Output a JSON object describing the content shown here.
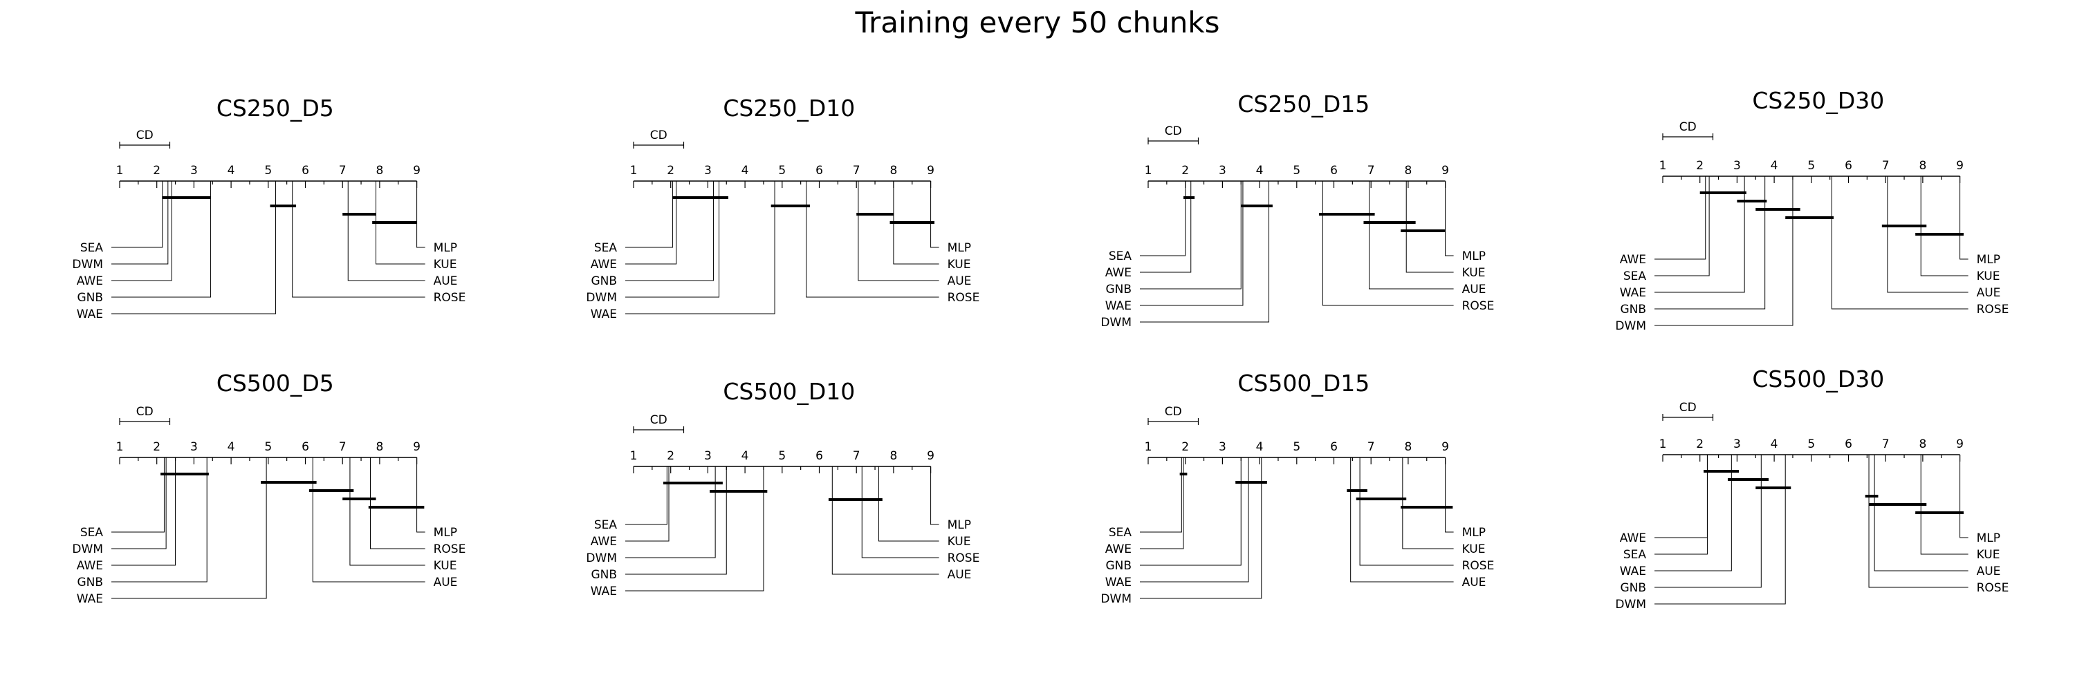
{
  "page_title": "Training every 50 chunks",
  "chart_data": [
    {
      "type": "critical-difference-diagram",
      "title": "CS250_D5",
      "axis_ticks": [
        1,
        2,
        3,
        4,
        5,
        6,
        7,
        8,
        9
      ],
      "axis_range": [
        1,
        9
      ],
      "cd_label": "CD",
      "cd_value": 1.35,
      "methods": [
        {
          "name": "SEA",
          "rank": 2.15
        },
        {
          "name": "DWM",
          "rank": 2.3
        },
        {
          "name": "AWE",
          "rank": 2.4
        },
        {
          "name": "GNB",
          "rank": 3.45
        },
        {
          "name": "WAE",
          "rank": 5.2
        },
        {
          "name": "ROSE",
          "rank": 5.65
        },
        {
          "name": "AUE",
          "rank": 7.15
        },
        {
          "name": "KUE",
          "rank": 7.9
        },
        {
          "name": "MLP",
          "rank": 9.0
        }
      ],
      "cliques": [
        [
          2.15,
          3.45
        ],
        [
          5.05,
          5.75
        ],
        [
          7.0,
          7.9
        ],
        [
          7.8,
          9.0
        ]
      ]
    },
    {
      "type": "critical-difference-diagram",
      "title": "CS250_D10",
      "axis_ticks": [
        1,
        2,
        3,
        4,
        5,
        6,
        7,
        8,
        9
      ],
      "axis_range": [
        1,
        9
      ],
      "cd_label": "CD",
      "cd_value": 1.35,
      "methods": [
        {
          "name": "SEA",
          "rank": 2.05
        },
        {
          "name": "AWE",
          "rank": 2.15
        },
        {
          "name": "GNB",
          "rank": 3.15
        },
        {
          "name": "DWM",
          "rank": 3.3
        },
        {
          "name": "WAE",
          "rank": 4.8
        },
        {
          "name": "ROSE",
          "rank": 5.65
        },
        {
          "name": "AUE",
          "rank": 7.05
        },
        {
          "name": "KUE",
          "rank": 8.0
        },
        {
          "name": "MLP",
          "rank": 9.0
        }
      ],
      "cliques": [
        [
          2.05,
          3.55
        ],
        [
          4.7,
          5.75
        ],
        [
          7.0,
          8.0
        ],
        [
          7.9,
          9.1
        ]
      ]
    },
    {
      "type": "critical-difference-diagram",
      "title": "CS250_D15",
      "axis_ticks": [
        1,
        2,
        3,
        4,
        5,
        6,
        7,
        8,
        9
      ],
      "axis_range": [
        1,
        9
      ],
      "cd_label": "CD",
      "cd_value": 1.35,
      "methods": [
        {
          "name": "SEA",
          "rank": 2.0
        },
        {
          "name": "AWE",
          "rank": 2.15
        },
        {
          "name": "GNB",
          "rank": 3.5
        },
        {
          "name": "WAE",
          "rank": 3.55
        },
        {
          "name": "DWM",
          "rank": 4.25
        },
        {
          "name": "ROSE",
          "rank": 5.7
        },
        {
          "name": "AUE",
          "rank": 6.95
        },
        {
          "name": "KUE",
          "rank": 7.95
        },
        {
          "name": "MLP",
          "rank": 9.0
        }
      ],
      "cliques": [
        [
          1.95,
          2.25
        ],
        [
          3.5,
          4.35
        ],
        [
          5.6,
          7.1
        ],
        [
          6.8,
          8.2
        ],
        [
          7.8,
          9.0
        ]
      ]
    },
    {
      "type": "critical-difference-diagram",
      "title": "CS250_D30",
      "axis_ticks": [
        1,
        2,
        3,
        4,
        5,
        6,
        7,
        8,
        9
      ],
      "axis_range": [
        1,
        9
      ],
      "cd_label": "CD",
      "cd_value": 1.35,
      "methods": [
        {
          "name": "AWE",
          "rank": 2.15
        },
        {
          "name": "SEA",
          "rank": 2.25
        },
        {
          "name": "WAE",
          "rank": 3.2
        },
        {
          "name": "GNB",
          "rank": 3.75
        },
        {
          "name": "DWM",
          "rank": 4.5
        },
        {
          "name": "ROSE",
          "rank": 5.55
        },
        {
          "name": "AUE",
          "rank": 7.05
        },
        {
          "name": "KUE",
          "rank": 7.95
        },
        {
          "name": "MLP",
          "rank": 9.0
        }
      ],
      "cliques": [
        [
          2.0,
          3.25
        ],
        [
          3.0,
          3.8
        ],
        [
          3.5,
          4.7
        ],
        [
          4.3,
          5.6
        ],
        [
          6.9,
          8.1
        ],
        [
          7.8,
          9.1
        ]
      ]
    },
    {
      "type": "critical-difference-diagram",
      "title": "CS500_D5",
      "axis_ticks": [
        1,
        2,
        3,
        4,
        5,
        6,
        7,
        8,
        9
      ],
      "axis_range": [
        1,
        9
      ],
      "cd_label": "CD",
      "cd_value": 1.35,
      "methods": [
        {
          "name": "SEA",
          "rank": 2.2
        },
        {
          "name": "DWM",
          "rank": 2.25
        },
        {
          "name": "AWE",
          "rank": 2.5
        },
        {
          "name": "GNB",
          "rank": 3.35
        },
        {
          "name": "WAE",
          "rank": 4.95
        },
        {
          "name": "AUE",
          "rank": 6.2
        },
        {
          "name": "KUE",
          "rank": 7.2
        },
        {
          "name": "ROSE",
          "rank": 7.75
        },
        {
          "name": "MLP",
          "rank": 9.0
        }
      ],
      "cliques": [
        [
          2.1,
          3.4
        ],
        [
          4.8,
          6.3
        ],
        [
          6.1,
          7.3
        ],
        [
          7.0,
          7.9
        ],
        [
          7.7,
          9.2
        ]
      ]
    },
    {
      "type": "critical-difference-diagram",
      "title": "CS500_D10",
      "axis_ticks": [
        1,
        2,
        3,
        4,
        5,
        6,
        7,
        8,
        9
      ],
      "axis_range": [
        1,
        9
      ],
      "cd_label": "CD",
      "cd_value": 1.35,
      "methods": [
        {
          "name": "SEA",
          "rank": 1.9
        },
        {
          "name": "AWE",
          "rank": 1.95
        },
        {
          "name": "DWM",
          "rank": 3.2
        },
        {
          "name": "GNB",
          "rank": 3.5
        },
        {
          "name": "WAE",
          "rank": 4.5
        },
        {
          "name": "AUE",
          "rank": 6.35
        },
        {
          "name": "ROSE",
          "rank": 7.15
        },
        {
          "name": "KUE",
          "rank": 7.6
        },
        {
          "name": "MLP",
          "rank": 9.0
        }
      ],
      "cliques": [
        [
          1.8,
          3.4
        ],
        [
          3.05,
          4.6
        ],
        [
          6.25,
          7.7
        ]
      ]
    },
    {
      "type": "critical-difference-diagram",
      "title": "CS500_D15",
      "axis_ticks": [
        1,
        2,
        3,
        4,
        5,
        6,
        7,
        8,
        9
      ],
      "axis_range": [
        1,
        9
      ],
      "cd_label": "CD",
      "cd_value": 1.35,
      "methods": [
        {
          "name": "SEA",
          "rank": 1.9
        },
        {
          "name": "AWE",
          "rank": 1.95
        },
        {
          "name": "GNB",
          "rank": 3.5
        },
        {
          "name": "WAE",
          "rank": 3.7
        },
        {
          "name": "DWM",
          "rank": 4.05
        },
        {
          "name": "AUE",
          "rank": 6.45
        },
        {
          "name": "ROSE",
          "rank": 6.7
        },
        {
          "name": "KUE",
          "rank": 7.85
        },
        {
          "name": "MLP",
          "rank": 9.0
        }
      ],
      "cliques": [
        [
          1.85,
          2.05
        ],
        [
          3.35,
          4.2
        ],
        [
          6.35,
          6.9
        ],
        [
          6.6,
          7.95
        ],
        [
          7.8,
          9.2
        ]
      ]
    },
    {
      "type": "critical-difference-diagram",
      "title": "CS500_D30",
      "axis_ticks": [
        1,
        2,
        3,
        4,
        5,
        6,
        7,
        8,
        9
      ],
      "axis_range": [
        1,
        9
      ],
      "cd_label": "CD",
      "cd_value": 1.35,
      "methods": [
        {
          "name": "AWE",
          "rank": 2.2
        },
        {
          "name": "SEA",
          "rank": 2.2
        },
        {
          "name": "WAE",
          "rank": 2.85
        },
        {
          "name": "GNB",
          "rank": 3.65
        },
        {
          "name": "DWM",
          "rank": 4.3
        },
        {
          "name": "ROSE",
          "rank": 6.55
        },
        {
          "name": "AUE",
          "rank": 6.7
        },
        {
          "name": "KUE",
          "rank": 7.95
        },
        {
          "name": "MLP",
          "rank": 9.0
        }
      ],
      "cliques": [
        [
          2.1,
          3.05
        ],
        [
          2.75,
          3.85
        ],
        [
          3.5,
          4.45
        ],
        [
          6.45,
          6.8
        ],
        [
          6.55,
          8.1
        ],
        [
          7.8,
          9.1
        ]
      ]
    }
  ]
}
